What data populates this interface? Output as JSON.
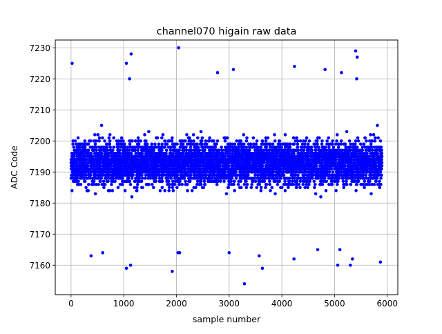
{
  "chart_data": {
    "type": "scatter",
    "title": "channel070 higain raw data",
    "xlabel": "sample number",
    "ylabel": "ADC Code",
    "xlim": [
      -300,
      6200
    ],
    "ylim": [
      7150.5,
      7232.5
    ],
    "xticks": [
      0,
      1000,
      2000,
      3000,
      4000,
      5000,
      6000
    ],
    "yticks": [
      7160,
      7170,
      7180,
      7190,
      7200,
      7210,
      7220,
      7230
    ],
    "grid": true,
    "marker_color": "#0000ff",
    "series": [
      {
        "n_samples": 5900,
        "x_start": 0,
        "x_end": 5900,
        "center": 7193,
        "core_low": 7179,
        "core_high": 7206,
        "min": 7154,
        "max": 7230,
        "outliers": [
          {
            "x": 20,
            "y": 7225
          },
          {
            "x": 1050,
            "y": 7225
          },
          {
            "x": 1140,
            "y": 7228
          },
          {
            "x": 1110,
            "y": 7220
          },
          {
            "x": 2040,
            "y": 7230
          },
          {
            "x": 2780,
            "y": 7222
          },
          {
            "x": 3080,
            "y": 7223
          },
          {
            "x": 4240,
            "y": 7224
          },
          {
            "x": 4820,
            "y": 7223
          },
          {
            "x": 5130,
            "y": 7222
          },
          {
            "x": 5400,
            "y": 7229
          },
          {
            "x": 5430,
            "y": 7227
          },
          {
            "x": 5420,
            "y": 7220
          },
          {
            "x": 3290,
            "y": 7154
          },
          {
            "x": 1920,
            "y": 7158
          },
          {
            "x": 1050,
            "y": 7159
          },
          {
            "x": 1130,
            "y": 7160
          },
          {
            "x": 3630,
            "y": 7159
          },
          {
            "x": 5060,
            "y": 7160
          },
          {
            "x": 5300,
            "y": 7160
          },
          {
            "x": 5870,
            "y": 7161
          },
          {
            "x": 4230,
            "y": 7162
          },
          {
            "x": 5340,
            "y": 7162
          },
          {
            "x": 380,
            "y": 7163
          },
          {
            "x": 2030,
            "y": 7164
          },
          {
            "x": 2060,
            "y": 7164
          },
          {
            "x": 3000,
            "y": 7164
          },
          {
            "x": 600,
            "y": 7164
          },
          {
            "x": 3570,
            "y": 7163
          },
          {
            "x": 5100,
            "y": 7165
          },
          {
            "x": 4680,
            "y": 7165
          }
        ]
      }
    ]
  }
}
